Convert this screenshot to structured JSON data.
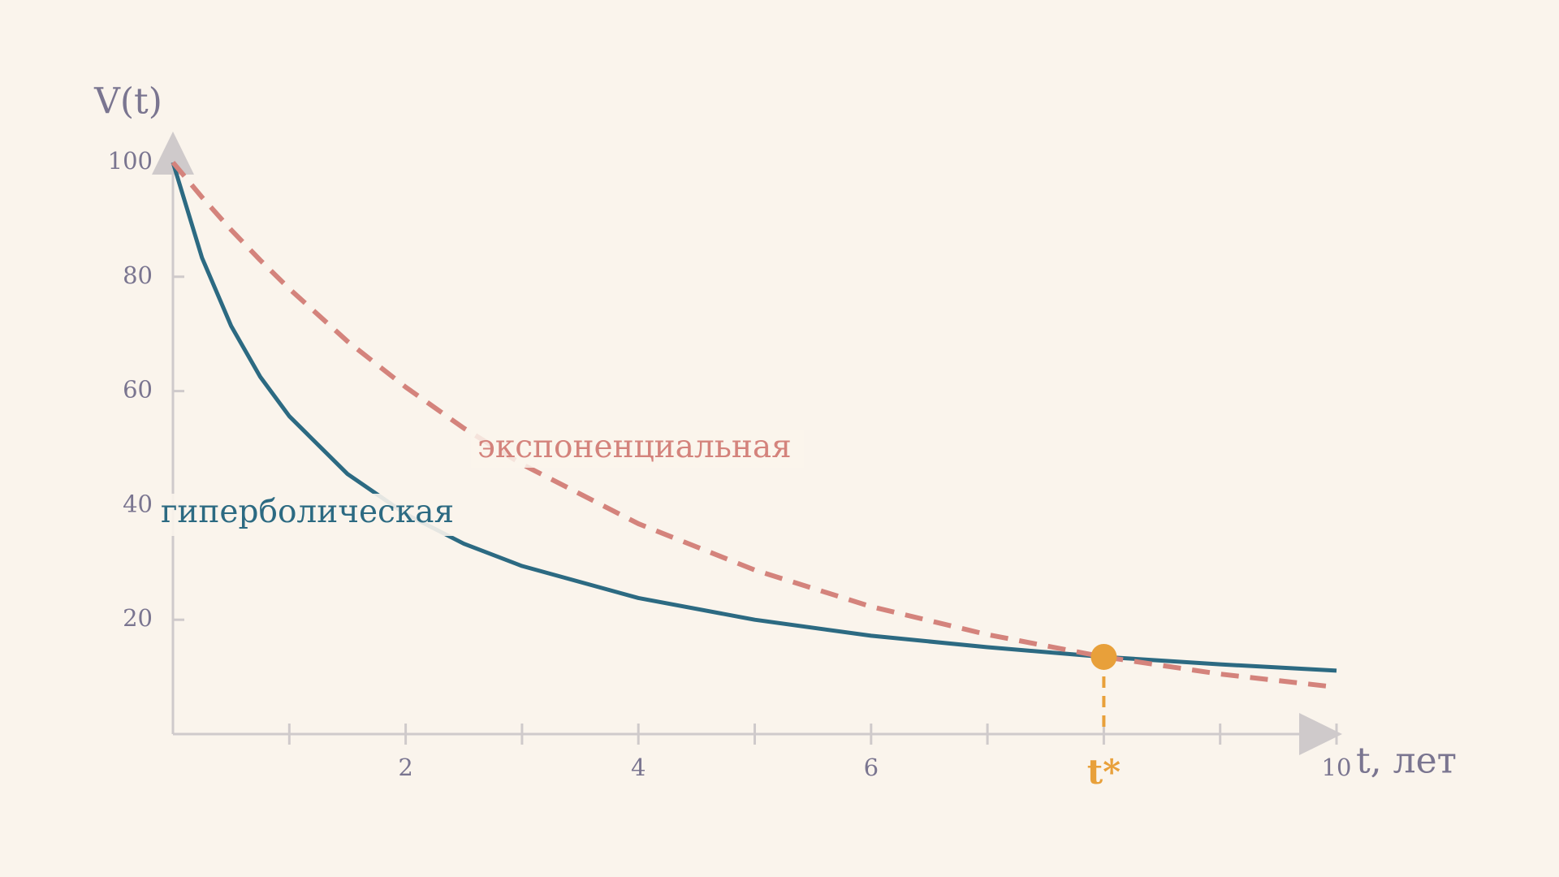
{
  "chart_data": {
    "type": "line",
    "x_label": "t, лет",
    "y_label": "V(t)",
    "x": [
      0,
      0.25,
      0.5,
      0.75,
      1,
      1.5,
      2,
      2.5,
      3,
      4,
      5,
      6,
      7,
      8,
      9,
      10
    ],
    "series": [
      {
        "name": "гиперболическая",
        "color": "#2c6a82",
        "dash": false,
        "values": [
          100,
          83.3,
          71.4,
          62.5,
          55.6,
          45.5,
          38.5,
          33.3,
          29.4,
          23.8,
          20,
          17.2,
          15.2,
          13.5,
          12.2,
          11.1
        ]
      },
      {
        "name": "экспоненциальная",
        "color": "#d4837c",
        "dash": true,
        "values": [
          100,
          93.9,
          88.2,
          82.9,
          77.9,
          68.7,
          60.7,
          53.5,
          47.2,
          36.8,
          28.7,
          22.3,
          17.4,
          13.5,
          10.5,
          8.2
        ]
      }
    ],
    "crossing": {
      "x": 8,
      "y": 13.5,
      "label": "t*",
      "color": "#e8a03a"
    },
    "xlim": [
      0,
      10
    ],
    "ylim": [
      0,
      100
    ],
    "xticks": [
      2,
      4,
      6,
      10
    ],
    "minor_xticks": [
      1,
      3,
      5,
      7,
      8,
      9
    ],
    "yticks": [
      20,
      40,
      60,
      80,
      100
    ]
  }
}
